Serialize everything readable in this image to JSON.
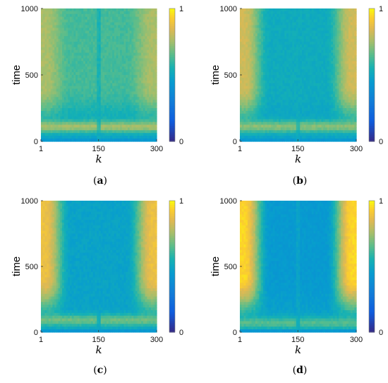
{
  "chart_data": [
    {
      "type": "heatmap",
      "panel": "a",
      "caption": "a",
      "xlabel": "k",
      "ylabel": "time",
      "xticks": [
        "1",
        "150",
        "300"
      ],
      "yticks": [
        "0",
        "500",
        "1000"
      ],
      "xlim": [
        1,
        300
      ],
      "ylim": [
        0,
        1000
      ],
      "colorbar": {
        "ticks": [
          "0",
          "1"
        ],
        "range": [
          0,
          1
        ]
      },
      "field": {
        "early_value": 0.48,
        "edge_value": 0.76,
        "center_value": 0.62,
        "center_stripe": 0.52,
        "low_band_time": 110,
        "low_band_value": 0.78
      }
    },
    {
      "type": "heatmap",
      "panel": "b",
      "caption": "b",
      "xlabel": "k",
      "ylabel": "time",
      "xticks": [
        "1",
        "150",
        "300"
      ],
      "yticks": [
        "0",
        "500",
        "1000"
      ],
      "xlim": [
        1,
        300
      ],
      "ylim": [
        0,
        1000
      ],
      "colorbar": {
        "ticks": [
          "0",
          "1"
        ],
        "range": [
          0,
          1
        ]
      },
      "field": {
        "early_value": 0.48,
        "edge_value": 0.82,
        "center_value": 0.52,
        "center_stripe": 0.52,
        "low_band_time": 110,
        "low_band_value": 0.74
      }
    },
    {
      "type": "heatmap",
      "panel": "c",
      "caption": "c",
      "xlabel": "k",
      "ylabel": "time",
      "xticks": [
        "1",
        "150",
        "300"
      ],
      "yticks": [
        "0",
        "500",
        "1000"
      ],
      "xlim": [
        1,
        300
      ],
      "ylim": [
        0,
        1000
      ],
      "colorbar": {
        "ticks": [
          "0",
          "1"
        ],
        "range": [
          0,
          1
        ]
      },
      "field": {
        "early_value": 0.48,
        "edge_value": 0.88,
        "center_value": 0.48,
        "center_stripe": 0.48,
        "low_band_time": 90,
        "low_band_value": 0.7
      }
    },
    {
      "type": "heatmap",
      "panel": "d",
      "caption": "d",
      "xlabel": "k",
      "ylabel": "time",
      "xticks": [
        "1",
        "150",
        "300"
      ],
      "yticks": [
        "0",
        "500",
        "1000"
      ],
      "xlim": [
        1,
        300
      ],
      "ylim": [
        0,
        1000
      ],
      "colorbar": {
        "ticks": [
          "0",
          "1"
        ],
        "range": [
          0,
          1
        ]
      },
      "field": {
        "early_value": 0.48,
        "edge_value": 0.94,
        "center_value": 0.44,
        "center_stripe": 0.5,
        "low_band_time": 70,
        "low_band_value": 0.66
      }
    }
  ]
}
